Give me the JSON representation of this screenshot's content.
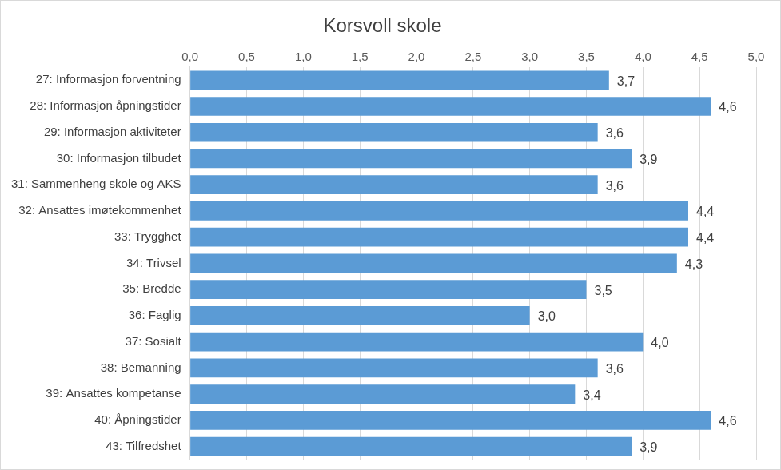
{
  "chart_data": {
    "type": "bar",
    "orientation": "horizontal",
    "title": "Korsvoll skole",
    "categories": [
      "27: Informasjon forventning",
      "28: Informasjon åpningstider",
      "29: Informasjon aktiviteter",
      "30: Informasjon tilbudet",
      "31: Sammenheng skole og AKS",
      "32: Ansattes imøtekommenhet",
      "33: Trygghet",
      "34: Trivsel",
      "35: Bredde",
      "36: Faglig",
      "37: Sosialt",
      "38: Bemanning",
      "39: Ansattes kompetanse",
      "40: Åpningstider",
      "43: Tilfredshet"
    ],
    "values": [
      3.7,
      4.6,
      3.6,
      3.9,
      3.6,
      4.4,
      4.4,
      4.3,
      3.5,
      3.0,
      4.0,
      3.6,
      3.4,
      4.6,
      3.9
    ],
    "value_labels": [
      "3,7",
      "4,6",
      "3,6",
      "3,9",
      "3,6",
      "4,4",
      "4,4",
      "4,3",
      "3,5",
      "3,0",
      "4,0",
      "3,6",
      "3,4",
      "4,6",
      "3,9"
    ],
    "color": "#5b9bd5",
    "xlim": [
      0,
      5
    ],
    "xticks": [
      {
        "value": 0,
        "label": "0,0"
      },
      {
        "value": 0.5,
        "label": "0,5"
      },
      {
        "value": 1,
        "label": "1,0"
      },
      {
        "value": 1.5,
        "label": "1,5"
      },
      {
        "value": 2,
        "label": "2,0"
      },
      {
        "value": 2.5,
        "label": "2,5"
      },
      {
        "value": 3,
        "label": "3,0"
      },
      {
        "value": 3.5,
        "label": "3,5"
      },
      {
        "value": 4,
        "label": "4,0"
      },
      {
        "value": 4.5,
        "label": "4,5"
      },
      {
        "value": 5,
        "label": "5,0"
      }
    ],
    "grid": true,
    "data_labels": true
  }
}
